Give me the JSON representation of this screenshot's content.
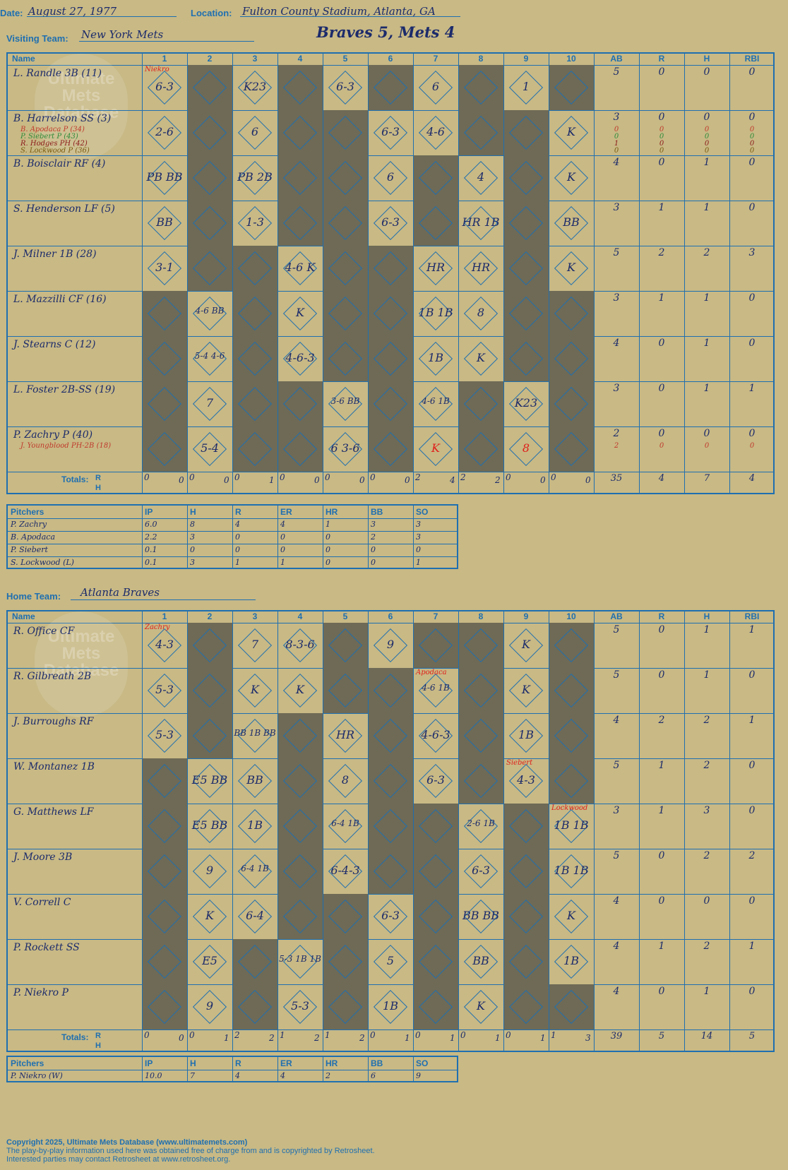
{
  "header": {
    "date_label": "Date:",
    "date": "August 27, 1977",
    "location_label": "Location:",
    "location": "Fulton County Stadium, Atlanta, GA",
    "visiting_label": "Visiting Team:",
    "visiting_team": "New York Mets",
    "result": "Braves 5, Mets 4",
    "home_label": "Home Team:",
    "home_team": "Atlanta Braves"
  },
  "watermark": "Ultimate Mets Database",
  "columns": [
    "Name",
    "1",
    "2",
    "3",
    "4",
    "5",
    "6",
    "7",
    "8",
    "9",
    "10",
    "AB",
    "R",
    "H",
    "RBI"
  ],
  "visitors": {
    "rows": [
      {
        "name": "L. Randle 3B (11)",
        "subs": [],
        "stats": [
          "5",
          "0",
          "0",
          "0"
        ],
        "plays": {
          "1": "6-3",
          "3": "K23",
          "5": "6-3",
          "7": "6",
          "9": "1"
        },
        "dark": [
          2,
          4,
          6,
          8,
          10
        ],
        "note": {
          "1": "Niekro"
        }
      },
      {
        "name": "B. Harrelson SS (3)",
        "subs": [
          {
            "t": "B. Apodaca P (34)",
            "c": "#c0392b"
          },
          {
            "t": "P. Siebert P (43)",
            "c": "#2e8b3a"
          },
          {
            "t": "R. Hodges PH (42)",
            "c": "#8b1a1a"
          },
          {
            "t": "S. Lockwood P (36)",
            "c": "#7a5a10"
          }
        ],
        "stats": [
          "3",
          "0",
          "0",
          "0"
        ],
        "substats": [
          [
            "0",
            "0",
            "0",
            "0"
          ],
          [
            "0",
            "0",
            "0",
            "0"
          ],
          [
            "1",
            "0",
            "0",
            "0"
          ],
          [
            "0",
            "0",
            "0",
            "0"
          ]
        ],
        "plays": {
          "1": "2-6",
          "3": "6",
          "6": "6-3",
          "7": "4-6",
          "10": "K"
        },
        "dark": [
          2,
          4,
          5,
          8,
          9
        ],
        "note": {}
      },
      {
        "name": "B. Boisclair RF (4)",
        "subs": [],
        "stats": [
          "4",
          "0",
          "1",
          "0"
        ],
        "plays": {
          "1": "PB BB",
          "3": "PB 2B",
          "6": "6",
          "8": "4",
          "10": "K"
        },
        "dark": [
          2,
          4,
          5,
          7,
          9
        ],
        "note": {}
      },
      {
        "name": "S. Henderson LF (5)",
        "subs": [],
        "stats": [
          "3",
          "1",
          "1",
          "0"
        ],
        "plays": {
          "1": "BB",
          "3": "1-3",
          "6": "6-3",
          "8": "HR 1B",
          "10": "BB"
        },
        "dark": [
          2,
          4,
          5,
          7,
          9
        ],
        "note": {}
      },
      {
        "name": "J. Milner 1B (28)",
        "subs": [],
        "stats": [
          "5",
          "2",
          "2",
          "3"
        ],
        "plays": {
          "1": "3-1",
          "4": "4-6 K",
          "7": "HR",
          "8": "HR",
          "10": "K"
        },
        "dark": [
          2,
          3,
          5,
          6,
          9
        ],
        "note": {}
      },
      {
        "name": "L. Mazzilli CF (16)",
        "subs": [],
        "stats": [
          "3",
          "1",
          "1",
          "0"
        ],
        "plays": {
          "2": "4-6 BB",
          "4": "K",
          "7": "1B 1B",
          "8": "8"
        },
        "dark": [
          1,
          3,
          5,
          6,
          9,
          10
        ],
        "note": {}
      },
      {
        "name": "J. Stearns C (12)",
        "subs": [],
        "stats": [
          "4",
          "0",
          "1",
          "0"
        ],
        "plays": {
          "2": "5-4 4-6",
          "4": "4-6-3",
          "7": "1B",
          "8": "K"
        },
        "dark": [
          1,
          3,
          5,
          6,
          9,
          10
        ],
        "note": {}
      },
      {
        "name": "L. Foster 2B-SS (19)",
        "subs": [],
        "stats": [
          "3",
          "0",
          "1",
          "1"
        ],
        "plays": {
          "2": "7",
          "5": "3-6 BB",
          "7": "4-6 1B",
          "9": "K23"
        },
        "dark": [
          1,
          3,
          4,
          6,
          8,
          10
        ],
        "note": {}
      },
      {
        "name": "P. Zachry P (40)",
        "subs": [
          {
            "t": "J. Youngblood PH-2B (18)",
            "c": "#c0392b"
          }
        ],
        "stats": [
          "2",
          "0",
          "0",
          "0"
        ],
        "substats": [
          [
            "2",
            "0",
            "0",
            "0"
          ]
        ],
        "plays": {
          "2": "5-4",
          "5": "6 3-6",
          "7": "K",
          "9": "8"
        },
        "dark": [
          1,
          3,
          4,
          6,
          8,
          10
        ],
        "note": {}
      }
    ],
    "totals_label": "Totals:",
    "rh": "R H",
    "totals": [
      [
        "0",
        "0"
      ],
      [
        "0",
        "0"
      ],
      [
        "0",
        "1"
      ],
      [
        "0",
        "0"
      ],
      [
        "0",
        "0"
      ],
      [
        "0",
        "0"
      ],
      [
        "2",
        "4"
      ],
      [
        "2",
        "2"
      ],
      [
        "0",
        "0"
      ],
      [
        "0",
        "0"
      ]
    ],
    "sum": [
      "35",
      "4",
      "7",
      "4"
    ]
  },
  "visitors_pitching": {
    "head": [
      "Pitchers",
      "IP",
      "H",
      "R",
      "ER",
      "HR",
      "BB",
      "SO"
    ],
    "rows": [
      [
        "P. Zachry",
        "6.0",
        "8",
        "4",
        "4",
        "1",
        "3",
        "3"
      ],
      [
        "B. Apodaca",
        "2.2",
        "3",
        "0",
        "0",
        "0",
        "2",
        "3"
      ],
      [
        "P. Siebert",
        "0.1",
        "0",
        "0",
        "0",
        "0",
        "0",
        "0"
      ],
      [
        "S. Lockwood (L)",
        "0.1",
        "3",
        "1",
        "1",
        "0",
        "0",
        "1"
      ]
    ]
  },
  "home": {
    "rows": [
      {
        "name": "R. Office CF",
        "stats": [
          "5",
          "0",
          "1",
          "1"
        ],
        "plays": {
          "1": "4-3",
          "3": "7",
          "4": "8-3-6",
          "6": "9",
          "9": "K"
        },
        "dark": [
          2,
          5,
          7,
          8,
          10
        ],
        "note": {
          "1": "Zachry"
        }
      },
      {
        "name": "R. Gilbreath 2B",
        "stats": [
          "5",
          "0",
          "1",
          "0"
        ],
        "plays": {
          "1": "5-3",
          "3": "K",
          "4": "K",
          "7": "4-6 1B",
          "9": "K"
        },
        "dark": [
          2,
          5,
          6,
          8,
          10
        ],
        "note": {
          "7": "Apodaca"
        }
      },
      {
        "name": "J. Burroughs RF",
        "stats": [
          "4",
          "2",
          "2",
          "1"
        ],
        "plays": {
          "1": "5-3",
          "3": "BB 1B BB",
          "5": "HR",
          "7": "4-6-3",
          "9": "1B"
        },
        "dark": [
          2,
          4,
          6,
          8,
          10
        ],
        "note": {}
      },
      {
        "name": "W. Montanez 1B",
        "stats": [
          "5",
          "1",
          "2",
          "0"
        ],
        "plays": {
          "2": "E5 BB",
          "3": "BB",
          "5": "8",
          "7": "6-3",
          "9": "4-3"
        },
        "dark": [
          1,
          4,
          6,
          8,
          10
        ],
        "note": {
          "9": "Siebert"
        }
      },
      {
        "name": "G. Matthews LF",
        "stats": [
          "3",
          "1",
          "3",
          "0"
        ],
        "plays": {
          "2": "E5 BB",
          "3": "1B",
          "5": "6-4 1B",
          "8": "2-6 1B",
          "10": "1B 1B"
        },
        "dark": [
          1,
          4,
          6,
          7,
          9
        ],
        "note": {
          "10": "Lockwood"
        }
      },
      {
        "name": "J. Moore 3B",
        "stats": [
          "5",
          "0",
          "2",
          "2"
        ],
        "plays": {
          "2": "9",
          "3": "6-4 1B",
          "5": "6-4-3",
          "8": "6-3",
          "10": "1B 1B"
        },
        "dark": [
          1,
          4,
          6,
          7,
          9
        ],
        "note": {}
      },
      {
        "name": "V. Correll C",
        "stats": [
          "4",
          "0",
          "0",
          "0"
        ],
        "plays": {
          "2": "K",
          "3": "6-4",
          "6": "6-3",
          "8": "BB BB",
          "10": "K"
        },
        "dark": [
          1,
          4,
          5,
          7,
          9
        ],
        "note": {}
      },
      {
        "name": "P. Rockett SS",
        "stats": [
          "4",
          "1",
          "2",
          "1"
        ],
        "plays": {
          "2": "E5",
          "4": "5-3 1B 1B",
          "6": "5",
          "8": "BB",
          "10": "1B"
        },
        "dark": [
          1,
          3,
          5,
          7,
          9
        ],
        "note": {}
      },
      {
        "name": "P. Niekro P",
        "stats": [
          "4",
          "0",
          "1",
          "0"
        ],
        "plays": {
          "2": "9",
          "4": "5-3",
          "6": "1B",
          "8": "K"
        },
        "dark": [
          1,
          3,
          5,
          7,
          9,
          10
        ],
        "note": {}
      }
    ],
    "totals_label": "Totals:",
    "rh": "R H",
    "totals": [
      [
        "0",
        "0"
      ],
      [
        "0",
        "1"
      ],
      [
        "2",
        "2"
      ],
      [
        "1",
        "2"
      ],
      [
        "1",
        "2"
      ],
      [
        "0",
        "1"
      ],
      [
        "0",
        "1"
      ],
      [
        "0",
        "1"
      ],
      [
        "0",
        "1"
      ],
      [
        "1",
        "3"
      ]
    ],
    "sum": [
      "39",
      "5",
      "14",
      "5"
    ]
  },
  "home_pitching": {
    "head": [
      "Pitchers",
      "IP",
      "H",
      "R",
      "ER",
      "HR",
      "BB",
      "SO"
    ],
    "rows": [
      [
        "P. Niekro (W)",
        "10.0",
        "7",
        "4",
        "4",
        "2",
        "6",
        "9"
      ]
    ]
  },
  "footer": {
    "line1": "Copyright 2025, Ultimate Mets Database (www.ultimatemets.com)",
    "line2": "The play-by-play information used here was obtained free of charge from and is copyrighted by Retrosheet.",
    "line3": "Interested parties may contact Retrosheet at www.retrosheet.org."
  },
  "colors": {
    "background": "#c8b985",
    "grid": "#1f6fb0",
    "dark_cell": "#6e6a56",
    "ink": "#1c2b6b",
    "note": "#e0201b"
  }
}
